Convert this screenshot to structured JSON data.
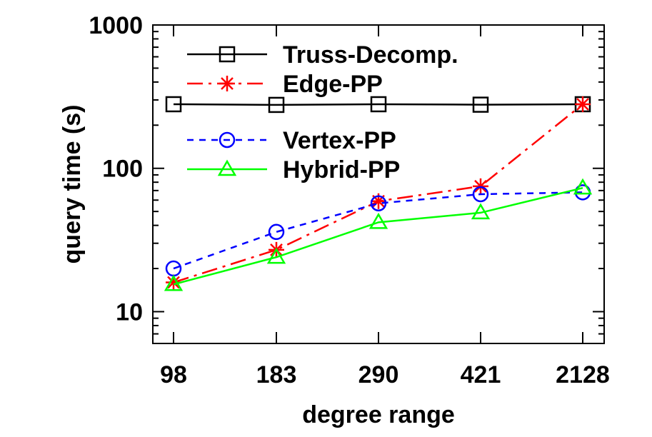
{
  "chart_data": {
    "type": "line",
    "xlabel": "degree range",
    "ylabel": "query time (s)",
    "categories": [
      "98",
      "183",
      "290",
      "421",
      "2128"
    ],
    "y_scale": "log",
    "ylim": [
      6,
      1000
    ],
    "y_ticks": [
      10,
      100,
      1000
    ],
    "y_tick_labels": [
      "10",
      "100",
      "1000"
    ],
    "grid": false,
    "legend_position": "top-left",
    "series": [
      {
        "name": "Truss-Decomp.",
        "values": [
          280,
          277,
          280,
          278,
          280
        ],
        "color": "#000000",
        "marker": "square",
        "dash": "solid"
      },
      {
        "name": "Edge-PP",
        "values": [
          16,
          27,
          59,
          75,
          280
        ],
        "color": "#ff0000",
        "marker": "asterisk",
        "dash": "dashdot"
      },
      {
        "name": "Vertex-PP",
        "values": [
          20,
          36,
          57,
          66,
          68
        ],
        "color": "#0000ff",
        "marker": "circle",
        "dash": "dashed"
      },
      {
        "name": "Hybrid-PP",
        "values": [
          15.5,
          24,
          42,
          49,
          73
        ],
        "color": "#00ff00",
        "marker": "triangle",
        "dash": "solid"
      }
    ]
  }
}
